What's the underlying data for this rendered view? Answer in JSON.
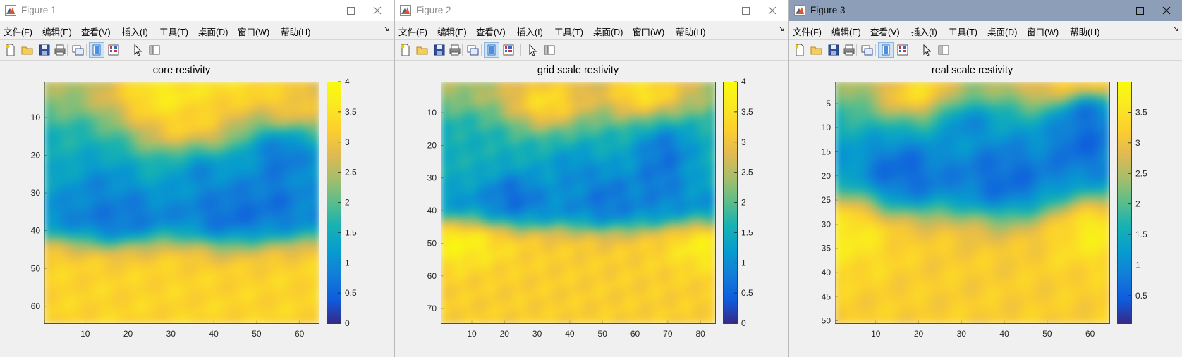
{
  "menu_items": [
    "文件(F)",
    "编辑(E)",
    "查看(V)",
    "插入(I)",
    "工具(T)",
    "桌面(D)",
    "窗口(W)",
    "帮助(H)"
  ],
  "menu_chevron": "↘",
  "toolbar_icons": [
    "new-figure-icon",
    "open-file-icon",
    "save-icon",
    "print-icon",
    "link-figure-icon",
    "toggle-plot-tools-icon",
    "show-plot-tools-icon",
    "pointer-icon",
    "dock-icon"
  ],
  "colors": {
    "title_active": "#8d9eb9",
    "title_inactive": "#ffffff",
    "window_bg": "#f0f0f0",
    "colormap": "parula"
  },
  "figures": [
    {
      "window_title": "Figure 1",
      "active": false,
      "chart_data": {
        "type": "heatmap",
        "title": "core restivity",
        "xlabel": "",
        "ylabel": "",
        "colormap": "parula",
        "x_ticks": [
          "10",
          "20",
          "30",
          "40",
          "50",
          "60"
        ],
        "y_ticks": [
          "10",
          "20",
          "30",
          "40",
          "50",
          "60"
        ],
        "colorbar_ticks": [
          "0",
          "0.5",
          "1",
          "1.5",
          "2",
          "2.5",
          "3",
          "3.5",
          "4"
        ],
        "clim": [
          0,
          4
        ],
        "grid_size": [
          64,
          64
        ],
        "blobs_high": [
          [
            28,
            3,
            9,
            7,
            3.9
          ],
          [
            45,
            0,
            10,
            6,
            3.6
          ],
          [
            34,
            12,
            8,
            5,
            3.4
          ],
          [
            57,
            8,
            6,
            5,
            3.5
          ]
        ],
        "blobs_low": [
          [
            55,
            19,
            6,
            6,
            0.55
          ],
          [
            53,
            31,
            6,
            6,
            0.65
          ],
          [
            42,
            34,
            6,
            6,
            0.55
          ],
          [
            36,
            24,
            5,
            5,
            0.9
          ],
          [
            16,
            35,
            7,
            5,
            0.55
          ],
          [
            13,
            28,
            6,
            6,
            0.9
          ]
        ],
        "bottom_band": {
          "start": 41,
          "edge": 4,
          "value": 3.3
        },
        "top_band": {
          "end": 8,
          "value": 3.2
        }
      }
    },
    {
      "window_title": "Figure 2",
      "active": false,
      "chart_data": {
        "type": "heatmap",
        "title": "grid scale restivity",
        "xlabel": "",
        "ylabel": "",
        "colormap": "parula",
        "x_ticks": [
          "10",
          "20",
          "30",
          "40",
          "50",
          "60",
          "70",
          "80"
        ],
        "y_ticks": [
          "10",
          "20",
          "30",
          "40",
          "50",
          "60",
          "70"
        ],
        "colorbar_ticks": [
          "0",
          "0.5",
          "1",
          "1.5",
          "2",
          "2.5",
          "3",
          "3.5",
          "4"
        ],
        "clim": [
          0,
          4
        ],
        "grid_size": [
          84,
          74
        ],
        "blobs_high": [
          [
            32,
            6,
            9,
            6,
            3.6
          ],
          [
            62,
            3,
            9,
            6,
            3.7
          ],
          [
            5,
            49,
            10,
            5,
            3.9
          ],
          [
            80,
            50,
            8,
            5,
            3.8
          ]
        ],
        "blobs_low": [
          [
            68,
            21,
            6,
            6,
            0.55
          ],
          [
            66,
            29,
            6,
            6,
            0.65
          ],
          [
            22,
            34,
            6,
            5,
            0.5
          ],
          [
            50,
            34,
            6,
            6,
            0.6
          ],
          [
            40,
            27,
            6,
            5,
            0.9
          ]
        ],
        "bottom_band": {
          "start": 44,
          "edge": 4,
          "value": 3.2
        },
        "top_band": {
          "end": 8,
          "value": 3.1
        }
      }
    },
    {
      "window_title": "Figure 3",
      "active": true,
      "chart_data": {
        "type": "heatmap",
        "title": "real scale restivity",
        "xlabel": "",
        "ylabel": "",
        "colormap": "parula",
        "x_ticks": [
          "10",
          "20",
          "30",
          "40",
          "50",
          "60"
        ],
        "y_ticks": [
          "5",
          "10",
          "15",
          "20",
          "25",
          "30",
          "35",
          "40",
          "45",
          "50"
        ],
        "colorbar_ticks": [
          "0.5",
          "1",
          "1.5",
          "2",
          "2.5",
          "3",
          "3.5"
        ],
        "clim": [
          0.05,
          4
        ],
        "grid_size": [
          64,
          50
        ],
        "blobs_high": [
          [
            19,
            2,
            7,
            4,
            3.6
          ],
          [
            58,
            1,
            10,
            3,
            3.8
          ],
          [
            3,
            30,
            7,
            6,
            3.8
          ],
          [
            60,
            30,
            7,
            5,
            3.8
          ]
        ],
        "blobs_low": [
          [
            15,
            18,
            7,
            5,
            0.5
          ],
          [
            39,
            19,
            7,
            6,
            0.55
          ],
          [
            57,
            12,
            6,
            5,
            0.45
          ],
          [
            59,
            6,
            5,
            3,
            0.6
          ],
          [
            30,
            8,
            5,
            3,
            0.9
          ]
        ],
        "bottom_band": {
          "start": 26,
          "edge": 4,
          "value": 3.2
        },
        "top_band": {
          "end": 4,
          "value": 3.1
        }
      }
    }
  ]
}
